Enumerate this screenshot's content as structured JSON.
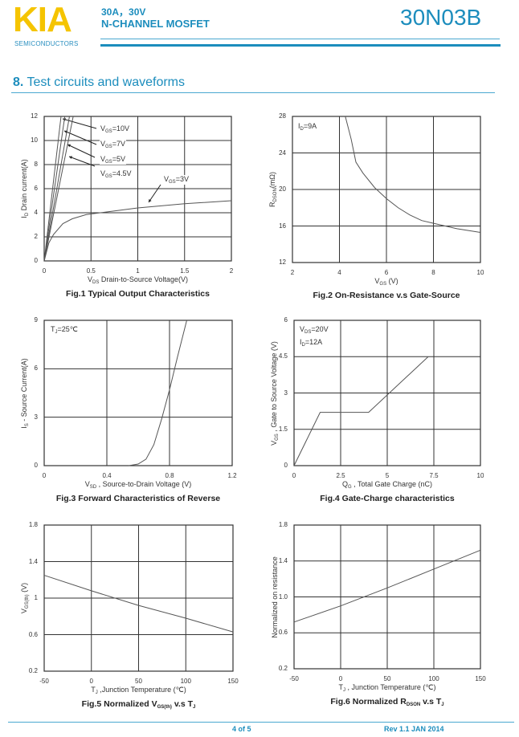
{
  "header": {
    "logo": "KIA",
    "logo_sub": "SEMICONDUCTORS",
    "spec_line1": "30A，30V",
    "spec_line2": "N-CHANNEL MOSFET",
    "part_number": "30N03B",
    "brand_color": "#f5c400",
    "accent_color": "#1c8dbd"
  },
  "section": {
    "number": "8.",
    "title": " Test circuits and waveforms"
  },
  "footer": {
    "page": "4 of 5",
    "revision": "Rev 1.1 JAN 2014"
  },
  "chart_data": [
    {
      "type": "line",
      "caption": "Fig.1 Typical Output Characteristics",
      "xlabel": [
        {
          "t": "V"
        },
        {
          "t": "DS",
          "sub": true
        },
        {
          "t": " Drain-to-Source Voltage(V)"
        }
      ],
      "ylabel": [
        {
          "t": "I"
        },
        {
          "t": "D",
          "sub": true
        },
        {
          "t": " Drain current(A)"
        }
      ],
      "xlim": [
        0,
        2
      ],
      "ylim": [
        0,
        12
      ],
      "xticks": [
        "0",
        "0.5",
        "1",
        "1.5",
        "2"
      ],
      "xtickvals": [
        0,
        0.5,
        1,
        1.5,
        2
      ],
      "yticks": [
        "0",
        "2",
        "4",
        "6",
        "8",
        "10",
        "12"
      ],
      "ytickvals": [
        0,
        2,
        4,
        6,
        8,
        10,
        12
      ],
      "grid": true,
      "series": [
        {
          "name": [
            {
              "t": "V"
            },
            {
              "t": "GS",
              "sub": true
            },
            {
              "t": "=10V"
            }
          ],
          "points": [
            [
              0,
              0
            ],
            [
              0.18,
              12
            ]
          ]
        },
        {
          "name": [
            {
              "t": "V"
            },
            {
              "t": "GS",
              "sub": true
            },
            {
              "t": "=7V"
            }
          ],
          "points": [
            [
              0,
              0
            ],
            [
              0.22,
              12
            ]
          ]
        },
        {
          "name": [
            {
              "t": "V"
            },
            {
              "t": "GS",
              "sub": true
            },
            {
              "t": "=5V"
            }
          ],
          "points": [
            [
              0,
              0
            ],
            [
              0.27,
              12
            ]
          ]
        },
        {
          "name": [
            {
              "t": "V"
            },
            {
              "t": "GS",
              "sub": true
            },
            {
              "t": "=4.5V"
            }
          ],
          "points": [
            [
              0,
              0
            ],
            [
              0.31,
              12
            ]
          ]
        },
        {
          "name": [
            {
              "t": "V"
            },
            {
              "t": "GS",
              "sub": true
            },
            {
              "t": "=3V"
            }
          ],
          "points": [
            [
              0,
              0
            ],
            [
              0.05,
              1.5
            ],
            [
              0.1,
              2.2
            ],
            [
              0.2,
              3.1
            ],
            [
              0.3,
              3.5
            ],
            [
              0.45,
              3.85
            ],
            [
              0.6,
              4.0
            ],
            [
              1.0,
              4.4
            ],
            [
              1.5,
              4.75
            ],
            [
              2,
              5.0
            ]
          ]
        }
      ],
      "annotations": []
    },
    {
      "type": "line",
      "caption": "Fig.2 On-Resistance v.s Gate-Source",
      "xlabel": [
        {
          "t": "V"
        },
        {
          "t": "GS",
          "sub": true
        },
        {
          "t": " (V)"
        }
      ],
      "ylabel": [
        {
          "t": "R"
        },
        {
          "t": "DSON",
          "sub": true
        },
        {
          "t": "(mΩ)"
        }
      ],
      "xlim": [
        2,
        10
      ],
      "ylim": [
        12,
        28
      ],
      "xticks": [
        "2",
        "4",
        "6",
        "8",
        "10"
      ],
      "xtickvals": [
        2,
        4,
        6,
        8,
        10
      ],
      "yticks": [
        "12",
        "16",
        "20",
        "24",
        "28"
      ],
      "ytickvals": [
        12,
        16,
        20,
        24,
        28
      ],
      "grid": true,
      "series": [
        {
          "points": [
            [
              4.25,
              28
            ],
            [
              4.5,
              25.5
            ],
            [
              4.7,
              23
            ],
            [
              5,
              21.8
            ],
            [
              5.5,
              20.2
            ],
            [
              6,
              19
            ],
            [
              6.5,
              18
            ],
            [
              7,
              17.2
            ],
            [
              7.5,
              16.6
            ],
            [
              8,
              16.3
            ],
            [
              9,
              15.7
            ],
            [
              10,
              15.3
            ]
          ]
        }
      ],
      "annotations": [
        [
          {
            "t": "I"
          },
          {
            "t": "D",
            "sub": true
          },
          {
            "t": "=9A"
          }
        ]
      ]
    },
    {
      "type": "line",
      "caption": "Fig.3 Forward Characteristics of Reverse",
      "xlabel": [
        {
          "t": "V"
        },
        {
          "t": "SD",
          "sub": true
        },
        {
          "t": " , Source-to-Drain Voltage (V)"
        }
      ],
      "ylabel": [
        {
          "t": "I"
        },
        {
          "t": "S",
          "sub": true
        },
        {
          "t": " - Source Current(A)"
        }
      ],
      "xlim": [
        0,
        1.2
      ],
      "ylim": [
        0,
        9
      ],
      "xticks": [
        "0",
        "0.4",
        "0.8",
        "1.2"
      ],
      "xtickvals": [
        0,
        0.4,
        0.8,
        1.2
      ],
      "yticks": [
        "0",
        "3",
        "6",
        "9"
      ],
      "ytickvals": [
        0,
        3,
        6,
        9
      ],
      "grid": true,
      "series": [
        {
          "points": [
            [
              0.54,
              0
            ],
            [
              0.6,
              0.1
            ],
            [
              0.65,
              0.4
            ],
            [
              0.7,
              1.3
            ],
            [
              0.75,
              2.9
            ],
            [
              0.8,
              4.7
            ],
            [
              0.85,
              6.7
            ],
            [
              0.91,
              9
            ]
          ]
        }
      ],
      "annotations": [
        [
          {
            "t": "T"
          },
          {
            "t": "J",
            "sub": true
          },
          {
            "t": "=25℃"
          }
        ]
      ]
    },
    {
      "type": "line",
      "caption": "Fig.4 Gate-Charge characteristics",
      "xlabel": [
        {
          "t": "Q"
        },
        {
          "t": "G",
          "sub": true
        },
        {
          "t": " , Total Gate Charge (nC)"
        }
      ],
      "ylabel": [
        {
          "t": "V"
        },
        {
          "t": "GS",
          "sub": true
        },
        {
          "t": " , Gate to Source Voltage (V)"
        }
      ],
      "xlim": [
        0,
        10
      ],
      "ylim": [
        0,
        6
      ],
      "xticks": [
        "0",
        "2.5",
        "5",
        "7.5",
        "10"
      ],
      "xtickvals": [
        0,
        2.5,
        5,
        7.5,
        10
      ],
      "yticks": [
        "0",
        "1.5",
        "3",
        "4.5",
        "6"
      ],
      "ytickvals": [
        0,
        1.5,
        3,
        4.5,
        6
      ],
      "grid": true,
      "series": [
        {
          "points": [
            [
              0,
              0
            ],
            [
              1.4,
              2.2
            ],
            [
              4,
              2.2
            ],
            [
              7.2,
              4.5
            ]
          ]
        }
      ],
      "annotations": [
        [
          {
            "t": "V"
          },
          {
            "t": "DS",
            "sub": true
          },
          {
            "t": "=20V"
          }
        ],
        [
          {
            "t": "I"
          },
          {
            "t": "D",
            "sub": true
          },
          {
            "t": "=12A"
          }
        ]
      ]
    },
    {
      "type": "line",
      "caption": [
        {
          "t": "Fig.5 Normalized V"
        },
        {
          "t": "GS(th)",
          "sub": true
        },
        {
          "t": " v.s T"
        },
        {
          "t": "J",
          "sub": true
        }
      ],
      "xlabel": [
        {
          "t": "T"
        },
        {
          "t": "J",
          "sub": true
        },
        {
          "t": " ,Junction Temperature (℃)"
        }
      ],
      "ylabel": [
        {
          "t": "V"
        },
        {
          "t": "GS(th)",
          "sub": true
        },
        {
          "t": " (V)"
        }
      ],
      "xlim": [
        -50,
        150
      ],
      "ylim": [
        0.2,
        1.8
      ],
      "xticks": [
        "-50",
        "0",
        "50",
        "100",
        "150"
      ],
      "xtickvals": [
        -50,
        0,
        50,
        100,
        150
      ],
      "yticks": [
        "0.2",
        "0.6",
        "1",
        "1.4",
        "1.8"
      ],
      "ytickvals": [
        0.2,
        0.6,
        1,
        1.4,
        1.8
      ],
      "grid": true,
      "series": [
        {
          "points": [
            [
              -50,
              1.25
            ],
            [
              0,
              1.08
            ],
            [
              50,
              0.92
            ],
            [
              100,
              0.78
            ],
            [
              150,
              0.63
            ]
          ]
        }
      ],
      "annotations": []
    },
    {
      "type": "line",
      "caption": [
        {
          "t": "Fig.6 Normalized R"
        },
        {
          "t": "DSON",
          "sub": true
        },
        {
          "t": " v.s T"
        },
        {
          "t": "J",
          "sub": true
        }
      ],
      "xlabel": [
        {
          "t": "T"
        },
        {
          "t": "J",
          "sub": true
        },
        {
          "t": " , Junction Temperature (℃)"
        }
      ],
      "ylabel": [
        {
          "t": "Normalized on resistance"
        }
      ],
      "xlim": [
        -50,
        150
      ],
      "ylim": [
        0.2,
        1.8
      ],
      "xticks": [
        "-50",
        "0",
        "50",
        "100",
        "150"
      ],
      "xtickvals": [
        -50,
        0,
        50,
        100,
        150
      ],
      "yticks": [
        "0.2",
        "0.6",
        "1.0",
        "1.4",
        "1.8"
      ],
      "ytickvals": [
        0.2,
        0.6,
        1.0,
        1.4,
        1.8
      ],
      "grid": true,
      "series": [
        {
          "points": [
            [
              -50,
              0.72
            ],
            [
              0,
              0.9
            ],
            [
              50,
              1.1
            ],
            [
              100,
              1.31
            ],
            [
              150,
              1.52
            ]
          ]
        }
      ],
      "annotations": []
    }
  ]
}
